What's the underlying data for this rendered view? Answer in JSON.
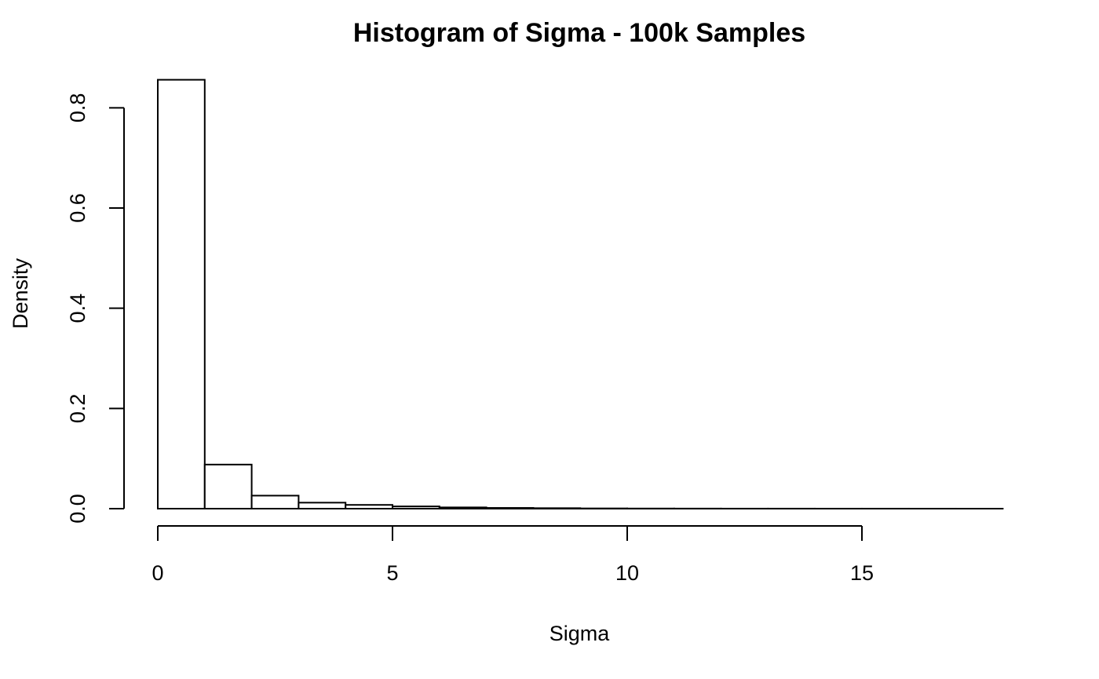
{
  "chart_data": {
    "type": "bar",
    "title": "Histogram of Sigma - 100k Samples",
    "xlabel": "Sigma",
    "ylabel": "Density",
    "bins": [
      {
        "x0": 0,
        "x1": 1,
        "density": 0.856
      },
      {
        "x0": 1,
        "x1": 2,
        "density": 0.088
      },
      {
        "x0": 2,
        "x1": 3,
        "density": 0.026
      },
      {
        "x0": 3,
        "x1": 4,
        "density": 0.012
      },
      {
        "x0": 4,
        "x1": 5,
        "density": 0.0075
      },
      {
        "x0": 5,
        "x1": 6,
        "density": 0.0045
      },
      {
        "x0": 6,
        "x1": 7,
        "density": 0.0025
      },
      {
        "x0": 7,
        "x1": 8,
        "density": 0.0015
      },
      {
        "x0": 8,
        "x1": 9,
        "density": 0.001
      },
      {
        "x0": 9,
        "x1": 10,
        "density": 0.0005
      },
      {
        "x0": 10,
        "x1": 11,
        "density": 0.0003
      },
      {
        "x0": 11,
        "x1": 12,
        "density": 0.0002
      },
      {
        "x0": 12,
        "x1": 13,
        "density": 0.0001
      },
      {
        "x0": 13,
        "x1": 14,
        "density": 0.0001
      },
      {
        "x0": 14,
        "x1": 15,
        "density": 5e-05
      },
      {
        "x0": 15,
        "x1": 16,
        "density": 5e-05
      },
      {
        "x0": 16,
        "x1": 17,
        "density": 3e-05
      },
      {
        "x0": 17,
        "x1": 18,
        "density": 2e-05
      }
    ],
    "xlim": [
      0,
      18
    ],
    "ylim": [
      0,
      0.856
    ],
    "x_ticks": [
      0,
      5,
      10,
      15
    ],
    "x_tick_labels": [
      "0",
      "5",
      "10",
      "15"
    ],
    "y_ticks": [
      0,
      0.2,
      0.4,
      0.6,
      0.8
    ],
    "y_tick_labels": [
      "0.0",
      "0.2",
      "0.4",
      "0.6",
      "0.8"
    ],
    "grid": false,
    "legend": "none"
  }
}
